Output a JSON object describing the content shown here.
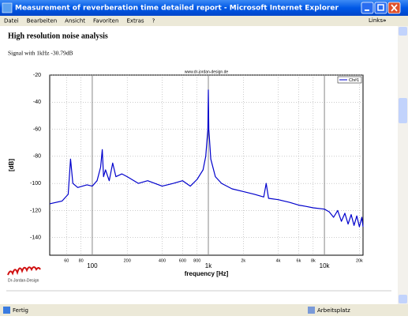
{
  "window": {
    "title": "Measurement of reverberation time detailed report - Microsoft Internet Explorer"
  },
  "menu": [
    "Datei",
    "Bearbeiten",
    "Ansicht",
    "Favoriten",
    "Extras",
    "?"
  ],
  "links": "Links",
  "links_more": "»",
  "heading": "High resolution noise analysis",
  "subtitle": "Signal with 1kHz -30.79dB",
  "logo": "Dr-Jordan-Design",
  "status": {
    "left": "Fertig",
    "right": "Arbeitsplatz"
  },
  "chart_data": {
    "type": "line",
    "annotation": "www.dr-jordan-design.de",
    "xlabel": "frequency [Hz]",
    "ylabel": "[dB]",
    "xscale": "log",
    "grid": true,
    "legend": "upper right",
    "xlim": [
      43,
      21500
    ],
    "ylim": [
      -153,
      -20
    ],
    "xticks": [
      {
        "value": 60,
        "label": "60"
      },
      {
        "value": 80,
        "label": "80"
      },
      {
        "value": 100,
        "label": "100"
      },
      {
        "value": 200,
        "label": "200"
      },
      {
        "value": 400,
        "label": "400"
      },
      {
        "value": 600,
        "label": "600"
      },
      {
        "value": 800,
        "label": "800"
      },
      {
        "value": 1000,
        "label": "1k"
      },
      {
        "value": 2000,
        "label": "2k"
      },
      {
        "value": 4000,
        "label": "4k"
      },
      {
        "value": 6000,
        "label": "6k"
      },
      {
        "value": 8000,
        "label": "8k"
      },
      {
        "value": 10000,
        "label": "10k"
      },
      {
        "value": 20000,
        "label": "20k"
      }
    ],
    "yticks": [
      -20,
      -40,
      -60,
      -80,
      -100,
      -120,
      -140
    ],
    "x": [
      43,
      55,
      62,
      65,
      68,
      75,
      90,
      100,
      110,
      118,
      122,
      125,
      130,
      140,
      150,
      160,
      180,
      200,
      250,
      300,
      400,
      500,
      600,
      700,
      800,
      900,
      950,
      990,
      1000,
      1010,
      1050,
      1150,
      1300,
      1600,
      2000,
      2500,
      3000,
      3150,
      3300,
      4000,
      5000,
      6000,
      7000,
      8000,
      10000,
      11000,
      12000,
      13000,
      14000,
      15000,
      16000,
      17000,
      18000,
      19000,
      20000,
      21000,
      21500
    ],
    "series": [
      {
        "name": "Ch#1",
        "color": "#0000cc",
        "values": [
          -115,
          -113,
          -108,
          -82,
          -100,
          -103,
          -101,
          -102,
          -98,
          -88,
          -75,
          -95,
          -90,
          -98,
          -85,
          -95,
          -93,
          -95,
          -100,
          -98,
          -102,
          -100,
          -98,
          -102,
          -97,
          -90,
          -80,
          -60,
          -31,
          -60,
          -82,
          -95,
          -100,
          -104,
          -106,
          -108,
          -110,
          -100,
          -111,
          -112,
          -114,
          -116,
          -117,
          -118,
          -119,
          -121,
          -125,
          -120,
          -128,
          -122,
          -130,
          -123,
          -131,
          -124,
          -132,
          -125,
          -132
        ]
      }
    ]
  }
}
